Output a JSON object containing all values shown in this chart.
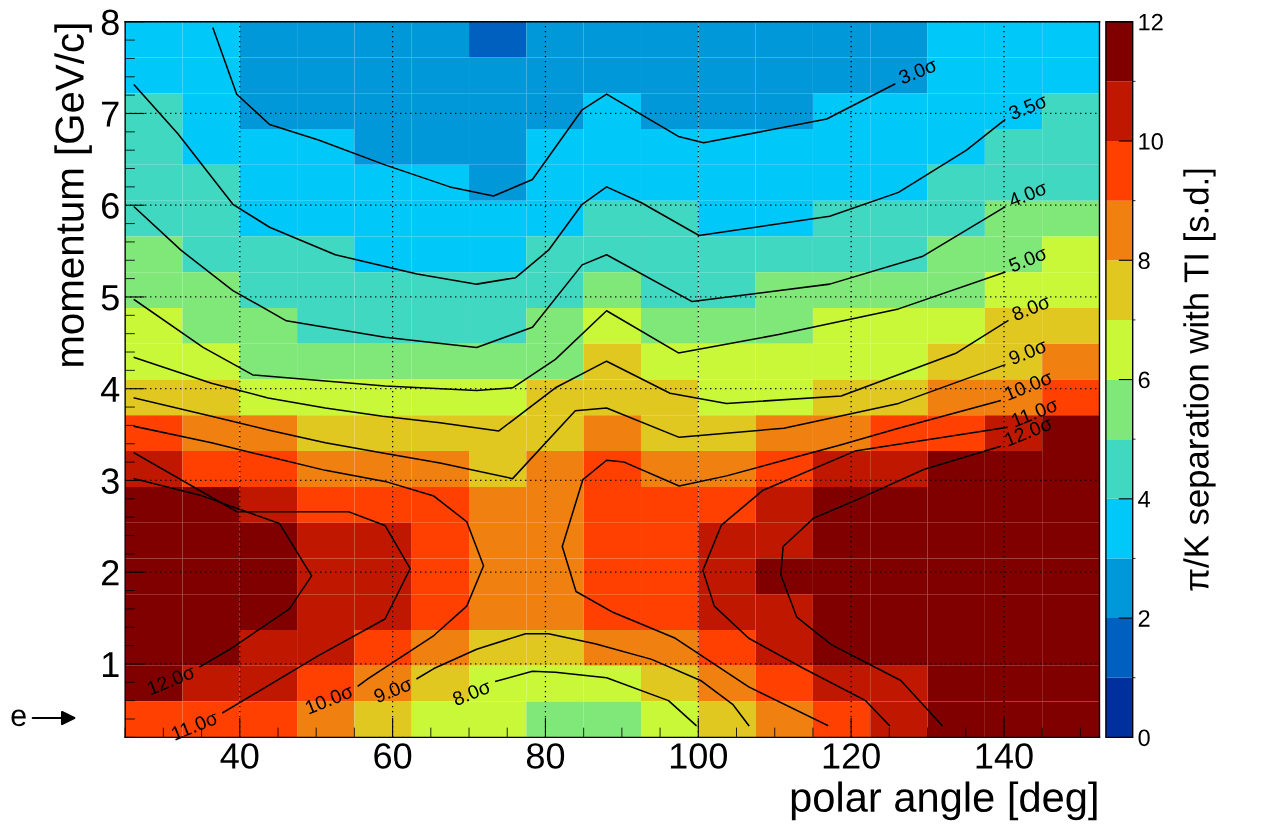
{
  "chart_data": {
    "type": "heatmap",
    "xlabel": "polar angle [deg]",
    "ylabel": "momentum [GeV/c]",
    "clabel": "π/K separation with TI [s.d.]",
    "xlim": [
      25,
      152.5
    ],
    "xticks": [
      40,
      60,
      80,
      100,
      120,
      140
    ],
    "ylim": [
      0.2,
      8
    ],
    "yticks": [
      1,
      2,
      3,
      4,
      5,
      6,
      7,
      8
    ],
    "clim": [
      0,
      12
    ],
    "cticks": [
      0,
      2,
      4,
      6,
      8,
      10,
      12
    ],
    "grid": true,
    "cells": [
      [
        3.5,
        3.5,
        2.5,
        2.5,
        2.5,
        2.5,
        1.5,
        2.5,
        2.5,
        2.5,
        2.5,
        2.5,
        2.5,
        2.5,
        3.5,
        3.5,
        3.5
      ],
      [
        3.5,
        3.5,
        2.5,
        2.5,
        2.5,
        2.5,
        2.5,
        2.5,
        2.5,
        2.5,
        2.5,
        2.5,
        2.5,
        2.5,
        3.5,
        3.5,
        3.5
      ],
      [
        4.5,
        3.5,
        2.5,
        2.5,
        2.5,
        2.5,
        2.5,
        2.5,
        3.5,
        2.5,
        2.5,
        2.5,
        3.5,
        3.5,
        3.5,
        3.5,
        4.5
      ],
      [
        4.5,
        3.5,
        3.5,
        3.5,
        2.5,
        2.5,
        2.5,
        3.5,
        3.5,
        3.5,
        3.5,
        3.5,
        3.5,
        3.5,
        3.5,
        4.5,
        4.5
      ],
      [
        4.5,
        4.5,
        3.5,
        3.5,
        3.5,
        3.5,
        2.5,
        3.5,
        3.5,
        3.5,
        3.5,
        3.5,
        3.5,
        3.5,
        4.5,
        4.5,
        4.5
      ],
      [
        4.5,
        4.5,
        3.5,
        3.5,
        3.5,
        3.5,
        3.5,
        3.5,
        4.5,
        4.5,
        3.5,
        3.5,
        4.5,
        4.5,
        4.5,
        5.5,
        5.5
      ],
      [
        5.5,
        4.5,
        4.5,
        4.5,
        3.5,
        3.5,
        3.5,
        4.5,
        4.5,
        4.5,
        4.5,
        4.5,
        4.5,
        4.5,
        5.5,
        5.5,
        6.5
      ],
      [
        5.5,
        5.5,
        4.5,
        4.5,
        4.5,
        4.5,
        4.5,
        4.5,
        5.5,
        4.5,
        4.5,
        5.5,
        5.5,
        5.5,
        5.5,
        6.5,
        6.5
      ],
      [
        6.5,
        5.5,
        5.5,
        4.5,
        4.5,
        4.5,
        4.5,
        5.5,
        6.5,
        5.5,
        5.5,
        5.5,
        6.5,
        6.5,
        6.5,
        7.5,
        7.5
      ],
      [
        6.5,
        6.5,
        5.5,
        5.5,
        5.5,
        5.5,
        5.5,
        5.5,
        7.5,
        6.5,
        6.5,
        6.5,
        6.5,
        6.5,
        7.5,
        7.5,
        8.5
      ],
      [
        7.5,
        7.5,
        6.5,
        6.5,
        6.5,
        6.5,
        6.5,
        7.5,
        7.5,
        7.5,
        6.5,
        6.5,
        7.5,
        7.5,
        8.5,
        8.5,
        9.5
      ],
      [
        9.5,
        8.5,
        8.5,
        7.5,
        7.5,
        7.5,
        7.5,
        7.5,
        8.5,
        7.5,
        7.5,
        8.5,
        8.5,
        9.5,
        9.5,
        10.5,
        11.5
      ],
      [
        10.5,
        9.5,
        9.5,
        8.5,
        8.5,
        8.5,
        7.5,
        8.5,
        9.5,
        8.5,
        8.5,
        9.5,
        10.5,
        10.5,
        11.5,
        11.5,
        11.5
      ],
      [
        11.5,
        11.5,
        10.5,
        9.5,
        9.5,
        9.5,
        8.5,
        8.5,
        9.5,
        9.5,
        9.5,
        10.5,
        11.5,
        11.5,
        11.5,
        11.5,
        11.5
      ],
      [
        11.5,
        11.5,
        11.5,
        10.5,
        10.5,
        9.5,
        8.5,
        8.5,
        9.5,
        9.5,
        10.5,
        10.5,
        11.5,
        11.5,
        11.5,
        11.5,
        11.5
      ],
      [
        11.5,
        11.5,
        11.5,
        10.5,
        10.5,
        9.5,
        8.5,
        8.5,
        9.5,
        9.5,
        10.5,
        11.5,
        11.5,
        11.5,
        11.5,
        11.5,
        11.5
      ],
      [
        11.5,
        11.5,
        11.5,
        10.5,
        10.5,
        9.5,
        8.5,
        8.5,
        9.5,
        9.5,
        10.5,
        10.5,
        11.5,
        11.5,
        11.5,
        11.5,
        11.5
      ],
      [
        11.5,
        11.5,
        10.5,
        10.5,
        9.5,
        8.5,
        7.5,
        7.5,
        8.5,
        8.5,
        9.5,
        10.5,
        11.5,
        11.5,
        11.5,
        11.5,
        11.5
      ],
      [
        11.5,
        10.5,
        10.5,
        9.5,
        8.5,
        7.5,
        6.5,
        6.5,
        6.5,
        7.5,
        8.5,
        9.5,
        10.5,
        10.5,
        11.5,
        11.5,
        11.5
      ],
      [
        9.5,
        9.5,
        9.5,
        8.5,
        7.5,
        6.5,
        6.5,
        5.5,
        5.5,
        6.5,
        7.5,
        8.5,
        9.5,
        10.5,
        11.5,
        11.5,
        11.5
      ]
    ],
    "series": [
      {
        "type": "line",
        "name": "3.0σ",
        "color": "#000000",
        "x": [
          36.5,
          39.6,
          43.9,
          50.3,
          59.0,
          67.5,
          73.2,
          78.3,
          84.8,
          88.0,
          97.4,
          100.7,
          116.8,
          125.7
        ],
        "values": [
          7.93,
          7.21,
          6.88,
          6.71,
          6.44,
          6.2,
          6.1,
          6.28,
          7.04,
          7.21,
          6.75,
          6.68,
          6.94,
          7.32
        ]
      },
      {
        "type": "line",
        "name": "3.5σ",
        "color": "#000000",
        "x": [
          26.2,
          31.9,
          39.1,
          43.9,
          52.5,
          63.2,
          71.0,
          76.1,
          80.4,
          84.8,
          88.0,
          92.5,
          100.1,
          117.2,
          126.2,
          135.1,
          140.1
        ],
        "values": [
          7.31,
          6.78,
          6.01,
          5.76,
          5.46,
          5.25,
          5.14,
          5.21,
          5.51,
          6.01,
          6.2,
          6.03,
          5.67,
          5.88,
          6.14,
          6.6,
          6.93
        ]
      },
      {
        "type": "line",
        "name": "4.0σ",
        "color": "#000000",
        "x": [
          26.2,
          32.3,
          39.1,
          46.1,
          59.0,
          71.0,
          78.3,
          84.8,
          88.0,
          99.2,
          117.2,
          129.3,
          140.1
        ],
        "values": [
          5.98,
          5.51,
          5.07,
          4.74,
          4.56,
          4.45,
          4.67,
          5.35,
          5.46,
          4.95,
          5.14,
          5.44,
          5.98
        ]
      },
      {
        "type": "line",
        "name": "5.0σ",
        "color": "#000000",
        "x": [
          26.2,
          35.2,
          41.7,
          59.0,
          71.0,
          75.7,
          81.3,
          88.0,
          97.4,
          110.5,
          126.2,
          140.1
        ],
        "values": [
          4.97,
          4.45,
          4.15,
          4.03,
          3.98,
          4.01,
          4.32,
          4.85,
          4.39,
          4.59,
          4.87,
          5.27
        ]
      },
      {
        "type": "line",
        "name": "8.0σ",
        "color": "#000000",
        "x": [
          26.2,
          36.3,
          43.7,
          51.2,
          58.7,
          66.2,
          73.9,
          81.3,
          88.0,
          96.3,
          103.7,
          118.7,
          133.8,
          140.5
        ],
        "values": [
          4.34,
          4.06,
          3.9,
          3.79,
          3.7,
          3.63,
          3.54,
          4.01,
          4.3,
          3.95,
          3.84,
          3.92,
          4.39,
          4.74
        ]
      },
      {
        "type": "line",
        "name": "9.0σ",
        "color": "#000000",
        "x": [
          26.2,
          36.3,
          43.7,
          51.2,
          58.7,
          66.2,
          75.7,
          83.9,
          88.0,
          97.5,
          111.2,
          126.2,
          140.1
        ],
        "values": [
          3.9,
          3.7,
          3.55,
          3.41,
          3.3,
          3.19,
          3.02,
          3.76,
          3.79,
          3.47,
          3.57,
          3.84,
          4.26
        ]
      },
      {
        "type": "line",
        "name": "9.0σ",
        "color": "#000000",
        "x": [
          106.6,
          104.5,
          100.3,
          93.9,
          86.5,
          80.4,
          77.4,
          71.0,
          65.4,
          63.2
        ],
        "values": [
          0.33,
          0.56,
          0.82,
          1.05,
          1.22,
          1.33,
          1.33,
          1.16,
          0.95,
          0.84
        ]
      },
      {
        "type": "line",
        "name": "8.0σ",
        "color": "#000000",
        "x": [
          99.7,
          96.1,
          88.0,
          81.3,
          78.3,
          73.5
        ],
        "values": [
          0.33,
          0.6,
          0.85,
          0.91,
          0.92,
          0.81
        ]
      },
      {
        "type": "line",
        "name": "10.0σ",
        "color": "#000000",
        "x": [
          26.2,
          36.3,
          43.7,
          51.2,
          59.0,
          65.4,
          69.7,
          71.9,
          69.7,
          65.4,
          56.8,
          55.5
        ],
        "values": [
          3.59,
          3.41,
          3.26,
          3.11,
          2.99,
          2.83,
          2.55,
          2.07,
          1.63,
          1.31,
          0.84,
          0.76
        ]
      },
      {
        "type": "line",
        "name": "10.0σ",
        "color": "#000000",
        "x": [
          116.9,
          106.6,
          97.0,
          88.9,
          84.0,
          82.2,
          84.9,
          88.0,
          90.3,
          97.5,
          103.7,
          111.2,
          118.7,
          126.2,
          139.5
        ],
        "values": [
          0.33,
          0.75,
          1.28,
          1.56,
          1.79,
          2.28,
          3.01,
          3.22,
          3.2,
          2.94,
          3.05,
          3.22,
          3.39,
          3.57,
          3.87
        ]
      },
      {
        "type": "line",
        "name": "11.0σ",
        "color": "#000000",
        "x": [
          26.2,
          39.6,
          54.2,
          59.0,
          62.3,
          59.0,
          50.3,
          37.8
        ],
        "values": [
          3.3,
          2.66,
          2.66,
          2.51,
          2.04,
          1.49,
          1.09,
          0.47
        ]
      },
      {
        "type": "line",
        "name": "11.0σ",
        "color": "#000000",
        "x": [
          125.0,
          121.9,
          113.8,
          106.6,
          102.1,
          100.6,
          103.0,
          108.4,
          120.5,
          140.4
        ],
        "values": [
          0.33,
          0.6,
          0.95,
          1.28,
          1.63,
          2.02,
          2.51,
          2.89,
          3.32,
          3.58
        ]
      },
      {
        "type": "line",
        "name": "12.0σ",
        "color": "#000000",
        "x": [
          26.2,
          34.8,
          45.2,
          49.4,
          46.5,
          38.7,
          34.8
        ],
        "values": [
          3.02,
          2.84,
          2.53,
          1.96,
          1.6,
          1.16,
          0.97
        ]
      },
      {
        "type": "line",
        "name": "12.0σ",
        "color": "#000000",
        "x": [
          131.9,
          126.5,
          117.4,
          112.9,
          110.8,
          111.1,
          115.1,
          120.5,
          129.5,
          139.5
        ],
        "values": [
          0.33,
          0.82,
          1.21,
          1.51,
          1.97,
          2.28,
          2.59,
          2.78,
          3.12,
          3.37
        ]
      }
    ],
    "annotations": [
      "e"
    ]
  }
}
